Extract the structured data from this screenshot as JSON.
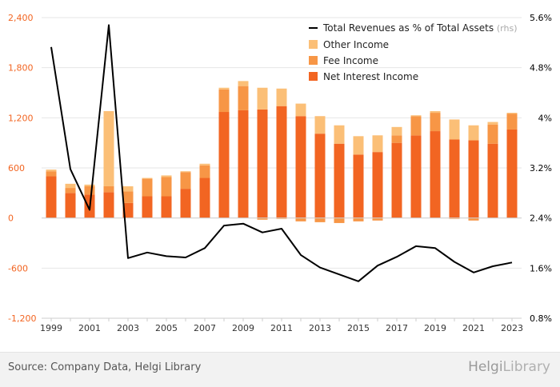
{
  "chart_data": {
    "type": "bar",
    "stacked": true,
    "categories": [
      "1999",
      "2000",
      "2001",
      "2002",
      "2003",
      "2004",
      "2005",
      "2006",
      "2007",
      "2008",
      "2009",
      "2010",
      "2011",
      "2012",
      "2013",
      "2014",
      "2015",
      "2016",
      "2017",
      "2018",
      "2019",
      "2020",
      "2021",
      "2022",
      "2023"
    ],
    "x_tick_labels": [
      "1999",
      "2001",
      "2003",
      "2005",
      "2007",
      "2009",
      "2011",
      "2013",
      "2015",
      "2017",
      "2019",
      "2021",
      "2023"
    ],
    "series": [
      {
        "name": "Net Interest Income",
        "color": "#f26522",
        "values": [
          500,
          300,
          280,
          310,
          180,
          260,
          260,
          350,
          480,
          1270,
          1290,
          1300,
          1340,
          1220,
          1010,
          890,
          760,
          790,
          900,
          990,
          1040,
          940,
          930,
          890,
          1060
        ]
      },
      {
        "name": "Fee Income",
        "color": "#f79646",
        "values": [
          60,
          60,
          100,
          70,
          140,
          210,
          230,
          200,
          150,
          270,
          290,
          -20,
          -10,
          -40,
          -50,
          -60,
          -40,
          -30,
          90,
          230,
          220,
          -10,
          -30,
          230,
          190
        ]
      },
      {
        "name": "Other Income",
        "color": "#fbbf77",
        "values": [
          20,
          50,
          20,
          900,
          60,
          10,
          20,
          10,
          20,
          20,
          60,
          260,
          210,
          150,
          210,
          220,
          220,
          200,
          100,
          10,
          20,
          240,
          180,
          30,
          10
        ]
      }
    ],
    "line_series": {
      "name": "Total Revenues as % of Total Assets",
      "axis_note": "(rhs)",
      "color": "#000000",
      "values": [
        5.13,
        3.18,
        2.53,
        5.48,
        1.76,
        1.85,
        1.79,
        1.77,
        1.92,
        2.28,
        2.31,
        2.17,
        2.23,
        1.81,
        1.61,
        1.5,
        1.39,
        1.64,
        1.78,
        1.95,
        1.92,
        1.7,
        1.53,
        1.63,
        1.69
      ]
    },
    "ylim": [
      -1200,
      2400
    ],
    "y_ticks": [
      "-1,200",
      "-600",
      "0",
      "600",
      "1,200",
      "1,800",
      "2,400"
    ],
    "y2lim": [
      0.8,
      5.6
    ],
    "y2_ticks": [
      "0.8%",
      "1.6%",
      "2.4%",
      "3.2%",
      "4%",
      "4.8%",
      "5.6%"
    ],
    "legend_position": "top-right",
    "grid": true
  },
  "footer": {
    "source": "Source: Company Data, Helgi Library",
    "brand_a": "Helgi",
    "brand_b": "Library"
  }
}
